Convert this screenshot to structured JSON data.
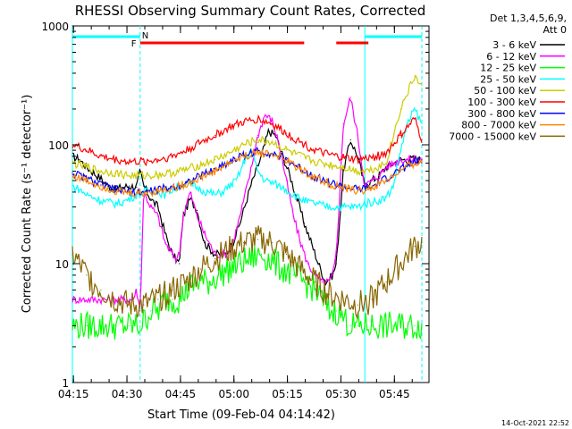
{
  "chart_data": {
    "type": "line",
    "title": "RHESSI Observing Summary Count Rates, Corrected",
    "xlabel": "Start Time (09-Feb-04 04:14:42)",
    "ylabel": "Corrected Count Rate (s⁻¹ detector⁻¹)",
    "y_scale": "log",
    "ylim": [
      1,
      1000
    ],
    "y_ticks": [
      "1",
      "10",
      "100",
      "1000"
    ],
    "x_range_minutes": [
      0,
      100
    ],
    "x_ticks": [
      "04:15",
      "04:30",
      "04:45",
      "05:00",
      "05:15",
      "05:30",
      "05:45"
    ],
    "x_tick_minutes": [
      0.3,
      15.3,
      30.3,
      45.3,
      60.3,
      75.3,
      90.3
    ],
    "legend_header": [
      "Det 1,3,4,5,6,9,",
      "Att 0"
    ],
    "legend_position": "right",
    "timestamp": "14-Oct-2021 22:52",
    "flag_labels": {
      "night": "N",
      "flare": "F"
    },
    "solid_markers_minutes": [
      0,
      82
    ],
    "dashed_markers_minutes": [
      19,
      98
    ],
    "night_segments_minutes": [
      [
        0,
        19
      ],
      [
        82,
        98
      ]
    ],
    "flare_segments_minutes": [
      [
        19,
        65
      ],
      [
        74,
        83
      ]
    ],
    "series": [
      {
        "name": "3 - 6 keV",
        "color": "#000000",
        "x": [
          0,
          2,
          4,
          6,
          8,
          10,
          12,
          14,
          16,
          18,
          19,
          20,
          22,
          24,
          26,
          28,
          30,
          31,
          33,
          35,
          37,
          40,
          43,
          45,
          47,
          50,
          53,
          55,
          57,
          59,
          61,
          63,
          65,
          67,
          69,
          71,
          73,
          74,
          76,
          78,
          80,
          82,
          84,
          86,
          88,
          90,
          92,
          94,
          96,
          98
        ],
        "values": [
          80,
          75,
          65,
          58,
          52,
          45,
          42,
          44,
          45,
          44,
          60,
          45,
          35,
          30,
          18,
          12,
          10,
          25,
          35,
          28,
          15,
          12,
          12,
          15,
          22,
          45,
          80,
          130,
          120,
          80,
          55,
          35,
          22,
          15,
          10,
          7,
          8,
          10,
          60,
          110,
          80,
          45,
          50,
          55,
          65,
          70,
          75,
          75,
          76,
          75
        ]
      },
      {
        "name": "6 - 12 keV",
        "color": "#ff00ff",
        "x": [
          0,
          14,
          17,
          18,
          19,
          20,
          22,
          24,
          26,
          28,
          29,
          30,
          31,
          33,
          35,
          37,
          40,
          43,
          45,
          47,
          50,
          52,
          54,
          56,
          58,
          60,
          62,
          64,
          66,
          68,
          70,
          72,
          73,
          74,
          76,
          78,
          80,
          82,
          84,
          86,
          88,
          90,
          92,
          94,
          96,
          98
        ],
        "values": [
          5,
          5,
          5,
          6,
          4,
          40,
          30,
          25,
          15,
          12,
          11,
          12,
          25,
          40,
          25,
          18,
          12,
          12,
          15,
          25,
          60,
          120,
          180,
          160,
          100,
          50,
          25,
          15,
          10,
          8,
          7,
          7,
          8,
          12,
          150,
          250,
          120,
          45,
          50,
          55,
          65,
          70,
          75,
          75,
          76,
          75
        ]
      },
      {
        "name": "12 - 25 keV",
        "color": "#00ff00",
        "x": [
          0,
          4,
          8,
          12,
          16,
          19,
          22,
          24,
          26,
          28,
          30,
          32,
          35,
          38,
          41,
          44,
          47,
          50,
          53,
          55,
          57,
          59,
          62,
          65,
          68,
          70,
          72,
          74,
          76,
          78,
          80,
          82,
          84,
          86,
          88,
          90,
          92,
          94,
          96,
          98
        ],
        "values": [
          3,
          3,
          3,
          3,
          3,
          3,
          4,
          4,
          5,
          5,
          5,
          6,
          7,
          7,
          8,
          9,
          10,
          11,
          12,
          11,
          10,
          9,
          8,
          7,
          6,
          5,
          4,
          4,
          3.5,
          3,
          3,
          3,
          3,
          3,
          3,
          3,
          3,
          3,
          3,
          3
        ]
      },
      {
        "name": "25 - 50 keV",
        "color": "#00ffff",
        "x": [
          0,
          2,
          4,
          6,
          8,
          10,
          12,
          14,
          16,
          18,
          20,
          22,
          24,
          26,
          28,
          30,
          32,
          34,
          36,
          38,
          40,
          42,
          44,
          46,
          48,
          50,
          52,
          54,
          56,
          58,
          60,
          62,
          64,
          66,
          68,
          70,
          72,
          74,
          76,
          78,
          80,
          82,
          84,
          86,
          88,
          90,
          92,
          94,
          96,
          98
        ],
        "values": [
          45,
          42,
          38,
          36,
          34,
          33,
          32,
          33,
          35,
          38,
          40,
          42,
          40,
          38,
          42,
          45,
          48,
          45,
          42,
          40,
          38,
          40,
          45,
          50,
          70,
          90,
          60,
          50,
          48,
          45,
          42,
          38,
          35,
          33,
          32,
          31,
          30,
          30,
          30,
          30,
          30,
          32,
          33,
          34,
          36,
          45,
          90,
          150,
          200,
          150
        ]
      },
      {
        "name": "50 - 100 keV",
        "color": "#cccc00",
        "x": [
          0,
          4,
          8,
          12,
          16,
          20,
          24,
          28,
          32,
          36,
          40,
          44,
          48,
          52,
          56,
          60,
          64,
          68,
          72,
          76,
          80,
          84,
          88,
          92,
          96,
          98
        ],
        "values": [
          70,
          65,
          60,
          58,
          55,
          55,
          56,
          58,
          62,
          68,
          75,
          85,
          100,
          110,
          105,
          90,
          80,
          72,
          68,
          65,
          60,
          62,
          70,
          200,
          380,
          300
        ]
      },
      {
        "name": "100 - 300 keV",
        "color": "#ff0000",
        "x": [
          0,
          4,
          8,
          12,
          16,
          20,
          24,
          28,
          32,
          36,
          40,
          44,
          48,
          52,
          56,
          60,
          64,
          68,
          72,
          76,
          80,
          84,
          88,
          92,
          96,
          98
        ],
        "values": [
          100,
          90,
          80,
          75,
          72,
          72,
          75,
          80,
          90,
          105,
          120,
          140,
          155,
          165,
          150,
          125,
          105,
          90,
          82,
          78,
          75,
          78,
          85,
          120,
          165,
          110
        ]
      },
      {
        "name": "300 - 800 keV",
        "color": "#0000ff",
        "x": [
          0,
          4,
          8,
          12,
          16,
          20,
          24,
          28,
          32,
          36,
          40,
          44,
          48,
          52,
          56,
          60,
          64,
          68,
          72,
          76,
          80,
          84,
          88,
          92,
          96,
          98
        ],
        "values": [
          58,
          52,
          46,
          42,
          40,
          40,
          42,
          44,
          48,
          55,
          62,
          72,
          82,
          88,
          85,
          75,
          63,
          54,
          48,
          44,
          42,
          44,
          52,
          62,
          72,
          72
        ]
      },
      {
        "name": "800 - 7000 keV",
        "color": "#ff8800",
        "x": [
          0,
          4,
          8,
          12,
          16,
          20,
          24,
          28,
          32,
          36,
          40,
          44,
          48,
          52,
          56,
          60,
          64,
          68,
          72,
          76,
          80,
          84,
          88,
          92,
          96,
          98
        ],
        "values": [
          55,
          50,
          45,
          41,
          39,
          39,
          41,
          43,
          47,
          53,
          60,
          70,
          80,
          86,
          84,
          74,
          62,
          53,
          47,
          43,
          41,
          43,
          50,
          60,
          70,
          70
        ]
      },
      {
        "name": "7000 - 15000 keV",
        "color": "#886600",
        "x": [
          0,
          4,
          8,
          12,
          16,
          20,
          24,
          28,
          32,
          36,
          40,
          44,
          48,
          52,
          56,
          60,
          64,
          68,
          72,
          76,
          80,
          84,
          88,
          92,
          96,
          98
        ],
        "values": [
          12,
          8,
          6,
          5,
          4.5,
          4.5,
          5,
          6,
          7,
          9,
          11,
          13,
          15,
          16,
          15,
          12,
          9,
          7,
          5.5,
          5,
          4.5,
          5,
          7,
          10,
          14,
          15
        ]
      }
    ]
  }
}
